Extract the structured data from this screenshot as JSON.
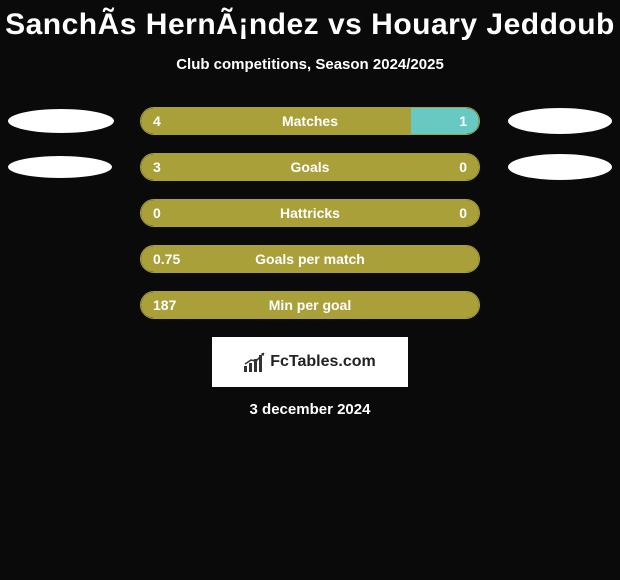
{
  "title": "SanchÃ­s HernÃ¡ndez vs Houary Jeddoub",
  "subtitle": "Club competitions, Season 2024/2025",
  "date": "3 december 2024",
  "brand": "FcTables.com",
  "colors": {
    "background": "#0a0a0a",
    "bar_left": "#aaa03a",
    "bar_right": "#68c8c2",
    "bar_border": "#aaa03a",
    "text": "#ffffff",
    "ellipse": "#ffffff"
  },
  "ellipses": {
    "row1": {
      "left_w": 106,
      "left_h": 24,
      "right_w": 104,
      "right_h": 26
    },
    "row2": {
      "left_w": 104,
      "left_h": 22,
      "right_w": 104,
      "right_h": 26
    }
  },
  "stats": [
    {
      "label": "Matches",
      "left_val": "4",
      "right_val": "1",
      "left_pct": 80,
      "right_pct": 20,
      "show_ellipses": true,
      "ellipse_key": "row1"
    },
    {
      "label": "Goals",
      "left_val": "3",
      "right_val": "0",
      "left_pct": 100,
      "right_pct": 0,
      "show_ellipses": true,
      "ellipse_key": "row2"
    },
    {
      "label": "Hattricks",
      "left_val": "0",
      "right_val": "0",
      "left_pct": 100,
      "right_pct": 0,
      "show_ellipses": false
    },
    {
      "label": "Goals per match",
      "left_val": "0.75",
      "right_val": "",
      "left_pct": 100,
      "right_pct": 0,
      "show_ellipses": false
    },
    {
      "label": "Min per goal",
      "left_val": "187",
      "right_val": "",
      "left_pct": 100,
      "right_pct": 0,
      "show_ellipses": false
    }
  ]
}
